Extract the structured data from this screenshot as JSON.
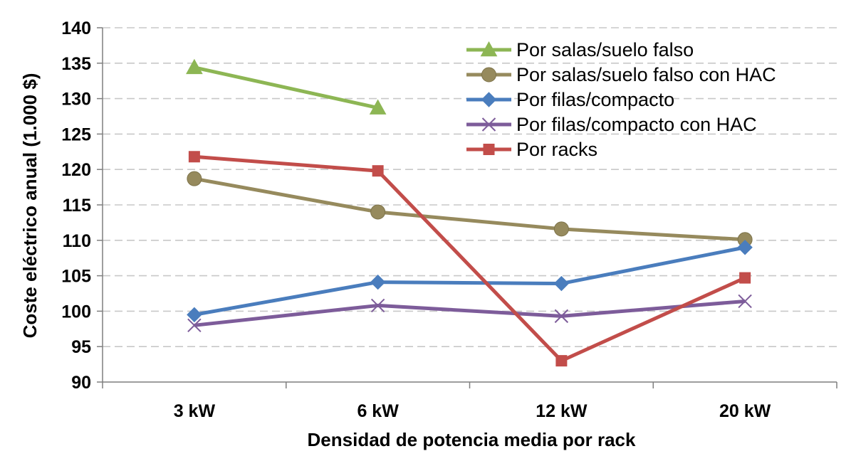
{
  "chart_data": {
    "type": "line",
    "xlabel": "Densidad de potencia media por rack",
    "ylabel": "Coste eléctrico anual (1.000 $)",
    "categories": [
      "3 kW",
      "6 kW",
      "12 kW",
      "20 kW"
    ],
    "ylim": [
      90,
      140
    ],
    "ytick_step": 5,
    "yticks": [
      "90",
      "95",
      "100",
      "105",
      "110",
      "115",
      "120",
      "125",
      "130",
      "135",
      "140"
    ],
    "grid": true,
    "legend_position": "top-right",
    "series": [
      {
        "name": "Por salas/suelo falso",
        "values": [
          134.4,
          128.7,
          null,
          null
        ],
        "color": "#8db654",
        "marker": "triangle"
      },
      {
        "name": "Por salas/suelo falso con HAC",
        "values": [
          118.7,
          114.0,
          111.6,
          110.1
        ],
        "color": "#968a5d",
        "marker": "circle"
      },
      {
        "name": "Por filas/compacto",
        "values": [
          99.5,
          104.1,
          103.9,
          109.0
        ],
        "color": "#4a7dbd",
        "marker": "diamond"
      },
      {
        "name": "Por filas/compacto con HAC",
        "values": [
          98.0,
          100.8,
          99.3,
          101.4
        ],
        "color": "#7d5c9a",
        "marker": "x"
      },
      {
        "name": "Por racks",
        "values": [
          121.8,
          119.8,
          93.0,
          104.7
        ],
        "color": "#c24d4a",
        "marker": "square"
      }
    ]
  }
}
